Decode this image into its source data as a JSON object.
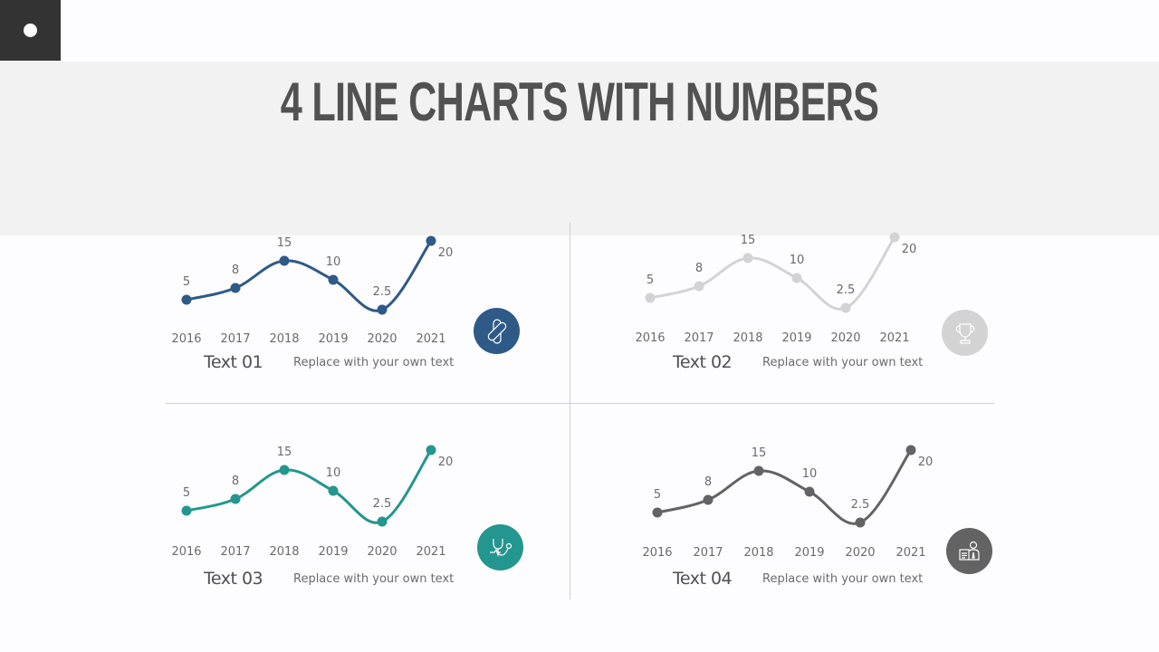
{
  "header": {
    "title": "4 LINE CHARTS WITH NUMBERS",
    "corner_icon": "bullet-dot-icon"
  },
  "colors": {
    "chart1": "#2e5a88",
    "chart2": "#d3d3d3",
    "chart3": "#23968f",
    "chart4": "#636363",
    "title": "#525252",
    "banner": "#f2f2f2",
    "corner": "#333333"
  },
  "panels": [
    {
      "title": "Text 01",
      "description": "Replace with your own text",
      "icon": "pill-icon"
    },
    {
      "title": "Text 02",
      "description": "Replace with your own text",
      "icon": "trophy-icon"
    },
    {
      "title": "Text 03",
      "description": "Replace with your own text",
      "icon": "stethoscope-icon"
    },
    {
      "title": "Text 04",
      "description": "Replace with your own text",
      "icon": "doctor-report-icon"
    }
  ],
  "chart_data": [
    {
      "type": "line",
      "title": "Text 01",
      "categories": [
        "2016",
        "2017",
        "2018",
        "2019",
        "2020",
        "2021"
      ],
      "values": [
        5,
        8,
        15,
        10,
        2.5,
        20
      ],
      "color": "#2e5a88",
      "xlabel": "",
      "ylabel": "",
      "grid": false,
      "smooth": true
    },
    {
      "type": "line",
      "title": "Text 02",
      "categories": [
        "2016",
        "2017",
        "2018",
        "2019",
        "2020",
        "2021"
      ],
      "values": [
        5,
        8,
        15,
        10,
        2.5,
        20
      ],
      "color": "#d3d3d3",
      "xlabel": "",
      "ylabel": "",
      "grid": false,
      "smooth": true
    },
    {
      "type": "line",
      "title": "Text 03",
      "categories": [
        "2016",
        "2017",
        "2018",
        "2019",
        "2020",
        "2021"
      ],
      "values": [
        5,
        8,
        15,
        10,
        2.5,
        20
      ],
      "color": "#23968f",
      "xlabel": "",
      "ylabel": "",
      "grid": false,
      "smooth": true
    },
    {
      "type": "line",
      "title": "Text 04",
      "categories": [
        "2016",
        "2017",
        "2018",
        "2019",
        "2020",
        "2021"
      ],
      "values": [
        5,
        8,
        15,
        10,
        2.5,
        20
      ],
      "color": "#636363",
      "xlabel": "",
      "ylabel": "",
      "grid": false,
      "smooth": true
    }
  ]
}
